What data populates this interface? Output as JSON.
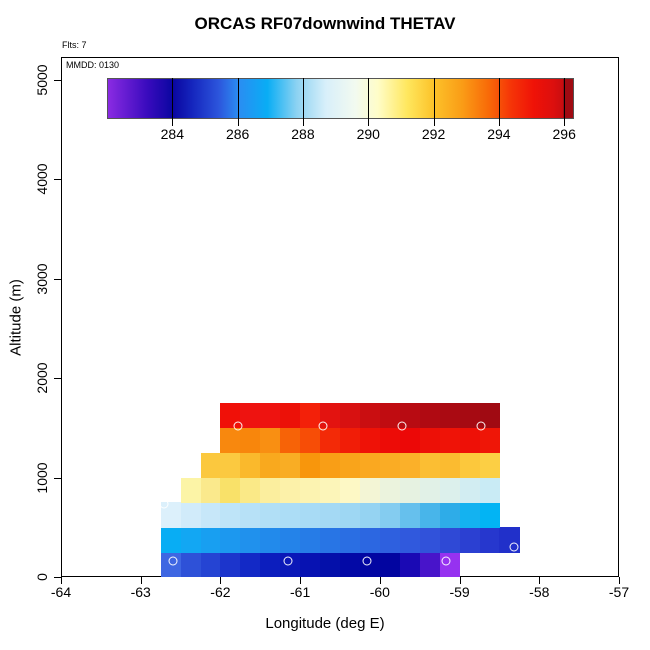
{
  "title": "ORCAS RF07downwind THETAV",
  "annotations": {
    "flights_label": "Flts: 7",
    "date_label": "MMDD: 0130"
  },
  "axes": {
    "x_title": "Longitude (deg E)",
    "y_title": "Altitude (m)"
  },
  "chart_data": {
    "type": "heatmap",
    "title": "ORCAS RF07downwind THETAV",
    "xlabel": "Longitude (deg E)",
    "ylabel": "Altitude (m)",
    "xlim": [
      -64,
      -57
    ],
    "ylim": [
      0,
      5230
    ],
    "x_ticks": [
      -64,
      -63,
      -62,
      -61,
      -60,
      -59,
      -58,
      -57
    ],
    "y_ticks": [
      0,
      1000,
      2000,
      3000,
      4000,
      5000
    ],
    "grid": false,
    "cell_width_deg": 0.25,
    "alt_band_m": 250,
    "colorbar": {
      "label_values": [
        284,
        286,
        288,
        290,
        292,
        294,
        296
      ],
      "value_range": [
        282,
        296.3
      ],
      "gradient_stops": [
        {
          "value": 282.0,
          "color": "#8A2BE2"
        },
        {
          "value": 283.2,
          "color": "#3A0BBE"
        },
        {
          "value": 284.0,
          "color": "#0A06A0"
        },
        {
          "value": 284.6,
          "color": "#1526BE"
        },
        {
          "value": 285.4,
          "color": "#2C55DC"
        },
        {
          "value": 286.0,
          "color": "#2B8CF2"
        },
        {
          "value": 286.9,
          "color": "#09ADF4"
        },
        {
          "value": 287.8,
          "color": "#8CD2F2"
        },
        {
          "value": 288.7,
          "color": "#D8EFFA"
        },
        {
          "value": 289.6,
          "color": "#F2FAF0"
        },
        {
          "value": 290.3,
          "color": "#FFFDC8"
        },
        {
          "value": 291.2,
          "color": "#FFE75E"
        },
        {
          "value": 292.0,
          "color": "#FCC32A"
        },
        {
          "value": 292.9,
          "color": "#FA9C16"
        },
        {
          "value": 293.7,
          "color": "#F86A08"
        },
        {
          "value": 294.4,
          "color": "#F53407"
        },
        {
          "value": 295.1,
          "color": "#EF1207"
        },
        {
          "value": 295.7,
          "color": "#DC0F0E"
        },
        {
          "value": 296.0,
          "color": "#C80D10"
        }
      ],
      "end_block": {
        "from_value": 296.0,
        "color": "#A00A12"
      }
    },
    "rows": [
      {
        "alt_min": 0,
        "alt_max": 250,
        "lon_start": -62.75,
        "cell_colors": [
          "#3E66E2",
          "#2E51D8",
          "#2544D3",
          "#1C35CC",
          "#1329C6",
          "#0C1EBE",
          "#0A18B8",
          "#0712B2",
          "#0410AA",
          "#0309A6",
          "#0206A2",
          "#0205A0",
          "#1A09B4",
          "#4814CA",
          "#9632F0"
        ]
      },
      {
        "alt_min": 250,
        "alt_max": 500,
        "lon_start": -62.75,
        "cell_colors": [
          "#08ADF4",
          "#12A7F3",
          "#189FF1",
          "#1C98EF",
          "#2091ED",
          "#228AEB",
          "#2483E9",
          "#267CE7",
          "#2875E5",
          "#2A6EE3",
          "#2C67E1",
          "#2E60DF",
          "#3059DD",
          "#3152DA",
          "#2F49D6",
          "#2B40D2",
          "#2637CE",
          "#2130CA"
        ]
      },
      {
        "alt_min": 500,
        "alt_max": 750,
        "lon_start": -62.75,
        "cell_colors": [
          "#DCF0FB",
          "#D1EBFA",
          "#C7E7F9",
          "#BEE4F8",
          "#B7E1F7",
          "#B1DFF6",
          "#ACDDF6",
          "#A8DBF5",
          "#A4D9F4",
          "#9ED7F3",
          "#95D3F2",
          "#84CCF0",
          "#66C0ED",
          "#48B5EA",
          "#2EACE8",
          "#14B2F0",
          "#02B4F4"
        ]
      },
      {
        "alt_min": 750,
        "alt_max": 1000,
        "lon_start": -62.5,
        "cell_colors": [
          "#FCF4A6",
          "#FAE98C",
          "#F9E169",
          "#FAE987",
          "#FBEE9E",
          "#FCF1A9",
          "#FCF3B1",
          "#FCF5B9",
          "#FDF8C5",
          "#F3F5D5",
          "#EBF3DD",
          "#E6F2E1",
          "#E1F1E7",
          "#DCF0EC",
          "#D2EDF2",
          "#C9EBF5"
        ]
      },
      {
        "alt_min": 1000,
        "alt_max": 1250,
        "lon_start": -62.25,
        "cell_colors": [
          "#FBC83E",
          "#FBC940",
          "#FAB92C",
          "#F9A91E",
          "#F9AD24",
          "#F8960C",
          "#F99E16",
          "#F9A41B",
          "#FAA820",
          "#FAAC24",
          "#FBB029",
          "#FBBE33",
          "#FBBB30",
          "#FCC83C",
          "#FCCF44"
        ]
      },
      {
        "alt_min": 1250,
        "alt_max": 1500,
        "lon_start": -62.0,
        "cell_colors": [
          "#F8880E",
          "#F8860C",
          "#F98F12",
          "#F76307",
          "#F74D06",
          "#F32A07",
          "#F11D07",
          "#EF1207",
          "#ED0C07",
          "#EC0807",
          "#ED1007",
          "#EF1307",
          "#EE1007",
          "#EF1607"
        ]
      },
      {
        "alt_min": 1500,
        "alt_max": 1750,
        "lon_start": -62.0,
        "cell_colors": [
          "#F01008",
          "#EE1310",
          "#EE1310",
          "#EC1108",
          "#F32009",
          "#E31310",
          "#D81111",
          "#CA0E11",
          "#C00C11",
          "#B80B12",
          "#B00A12",
          "#AA0A12",
          "#A60A12",
          "#A00A12"
        ]
      }
    ],
    "flight_track_points": [
      {
        "lon": -62.6,
        "alt": 165
      },
      {
        "lon": -61.15,
        "alt": 165
      },
      {
        "lon": -60.16,
        "alt": 165
      },
      {
        "lon": -59.17,
        "alt": 165
      },
      {
        "lon": -58.32,
        "alt": 297
      },
      {
        "lon": -62.71,
        "alt": 730
      },
      {
        "lon": -61.78,
        "alt": 1520
      },
      {
        "lon": -60.71,
        "alt": 1520
      },
      {
        "lon": -59.72,
        "alt": 1520
      },
      {
        "lon": -58.73,
        "alt": 1515
      }
    ],
    "legend_position": "top-inside"
  }
}
